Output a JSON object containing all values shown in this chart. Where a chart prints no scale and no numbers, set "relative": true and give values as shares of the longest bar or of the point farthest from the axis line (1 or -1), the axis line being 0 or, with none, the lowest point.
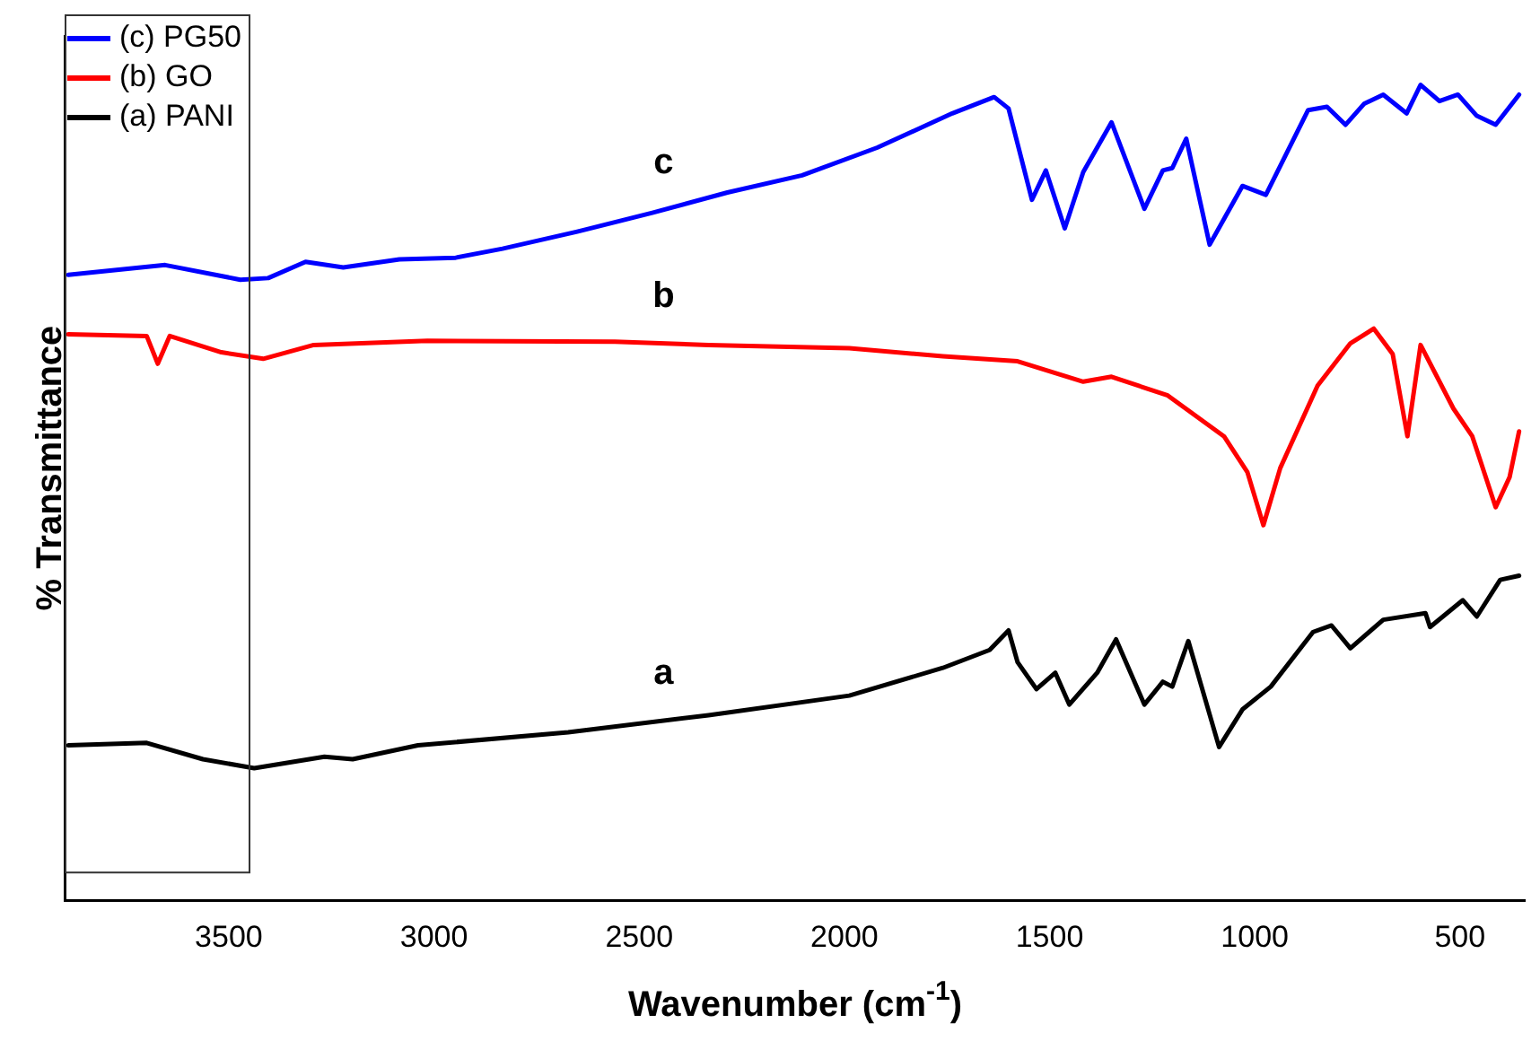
{
  "chart_data": {
    "type": "line",
    "xlabel": "Wavenumber (cm$^{-1}$)",
    "ylabel": "% Transmittance",
    "relative": true,
    "xlim": [
      3900,
      340
    ],
    "xticks": [
      3500,
      3000,
      2500,
      2000,
      1500,
      1000,
      500
    ],
    "grid": false,
    "legend": "top left",
    "marker": "none",
    "line_style": "solid",
    "annotations": [
      "c",
      "b",
      "a"
    ],
    "series": [
      {
        "name": "(c) PG50",
        "color": "#0000ff",
        "x": [
          3891,
          3655,
          3472,
          3404,
          3313,
          3221,
          3084,
          2947,
          2833,
          2651,
          2468,
          2285,
          2103,
          1920,
          1737,
          1635,
          1600,
          1543,
          1509,
          1463,
          1418,
          1349,
          1269,
          1224,
          1201,
          1167,
          1110,
          1030,
          973,
          870,
          824,
          779,
          733,
          687,
          630,
          596,
          550,
          505,
          459,
          413,
          356
        ],
        "values": [
          0.767,
          0.779,
          0.761,
          0.763,
          0.783,
          0.776,
          0.786,
          0.788,
          0.799,
          0.82,
          0.843,
          0.868,
          0.889,
          0.923,
          0.965,
          0.985,
          0.971,
          0.859,
          0.895,
          0.824,
          0.893,
          0.954,
          0.848,
          0.895,
          0.898,
          0.934,
          0.804,
          0.876,
          0.865,
          0.969,
          0.973,
          0.951,
          0.977,
          0.988,
          0.965,
          1,
          0.98,
          0.988,
          0.962,
          0.951,
          0.988
        ]
      },
      {
        "name": "(b) GO",
        "color": "#ff0000",
        "x": [
          3891,
          3700,
          3673,
          3644,
          3518,
          3416,
          3293,
          3016,
          2559,
          2331,
          1988,
          1760,
          1578,
          1418,
          1349,
          1212,
          1075,
          1018,
          979,
          938,
          847,
          767,
          710,
          664,
          628,
          596,
          516,
          470,
          413,
          379,
          356
        ],
        "values": [
          0.694,
          0.692,
          0.658,
          0.692,
          0.672,
          0.664,
          0.681,
          0.686,
          0.685,
          0.681,
          0.677,
          0.667,
          0.661,
          0.636,
          0.642,
          0.619,
          0.569,
          0.525,
          0.46,
          0.53,
          0.631,
          0.683,
          0.701,
          0.67,
          0.569,
          0.681,
          0.603,
          0.569,
          0.482,
          0.519,
          0.575
        ]
      },
      {
        "name": "(a) PANI",
        "color": "#000000",
        "x": [
          3891,
          3700,
          3563,
          3438,
          3267,
          3198,
          3039,
          2673,
          2331,
          1988,
          1760,
          1646,
          1600,
          1578,
          1532,
          1486,
          1452,
          1384,
          1338,
          1269,
          1224,
          1201,
          1162,
          1087,
          1030,
          961,
          858,
          813,
          767,
          687,
          584,
          573,
          493,
          459,
          402,
          356
        ],
        "values": [
          0.19,
          0.193,
          0.173,
          0.162,
          0.176,
          0.173,
          0.19,
          0.206,
          0.227,
          0.251,
          0.285,
          0.307,
          0.331,
          0.292,
          0.259,
          0.279,
          0.24,
          0.279,
          0.32,
          0.24,
          0.268,
          0.262,
          0.318,
          0.188,
          0.234,
          0.262,
          0.329,
          0.337,
          0.309,
          0.344,
          0.352,
          0.335,
          0.368,
          0.348,
          0.393,
          0.398
        ]
      }
    ]
  }
}
